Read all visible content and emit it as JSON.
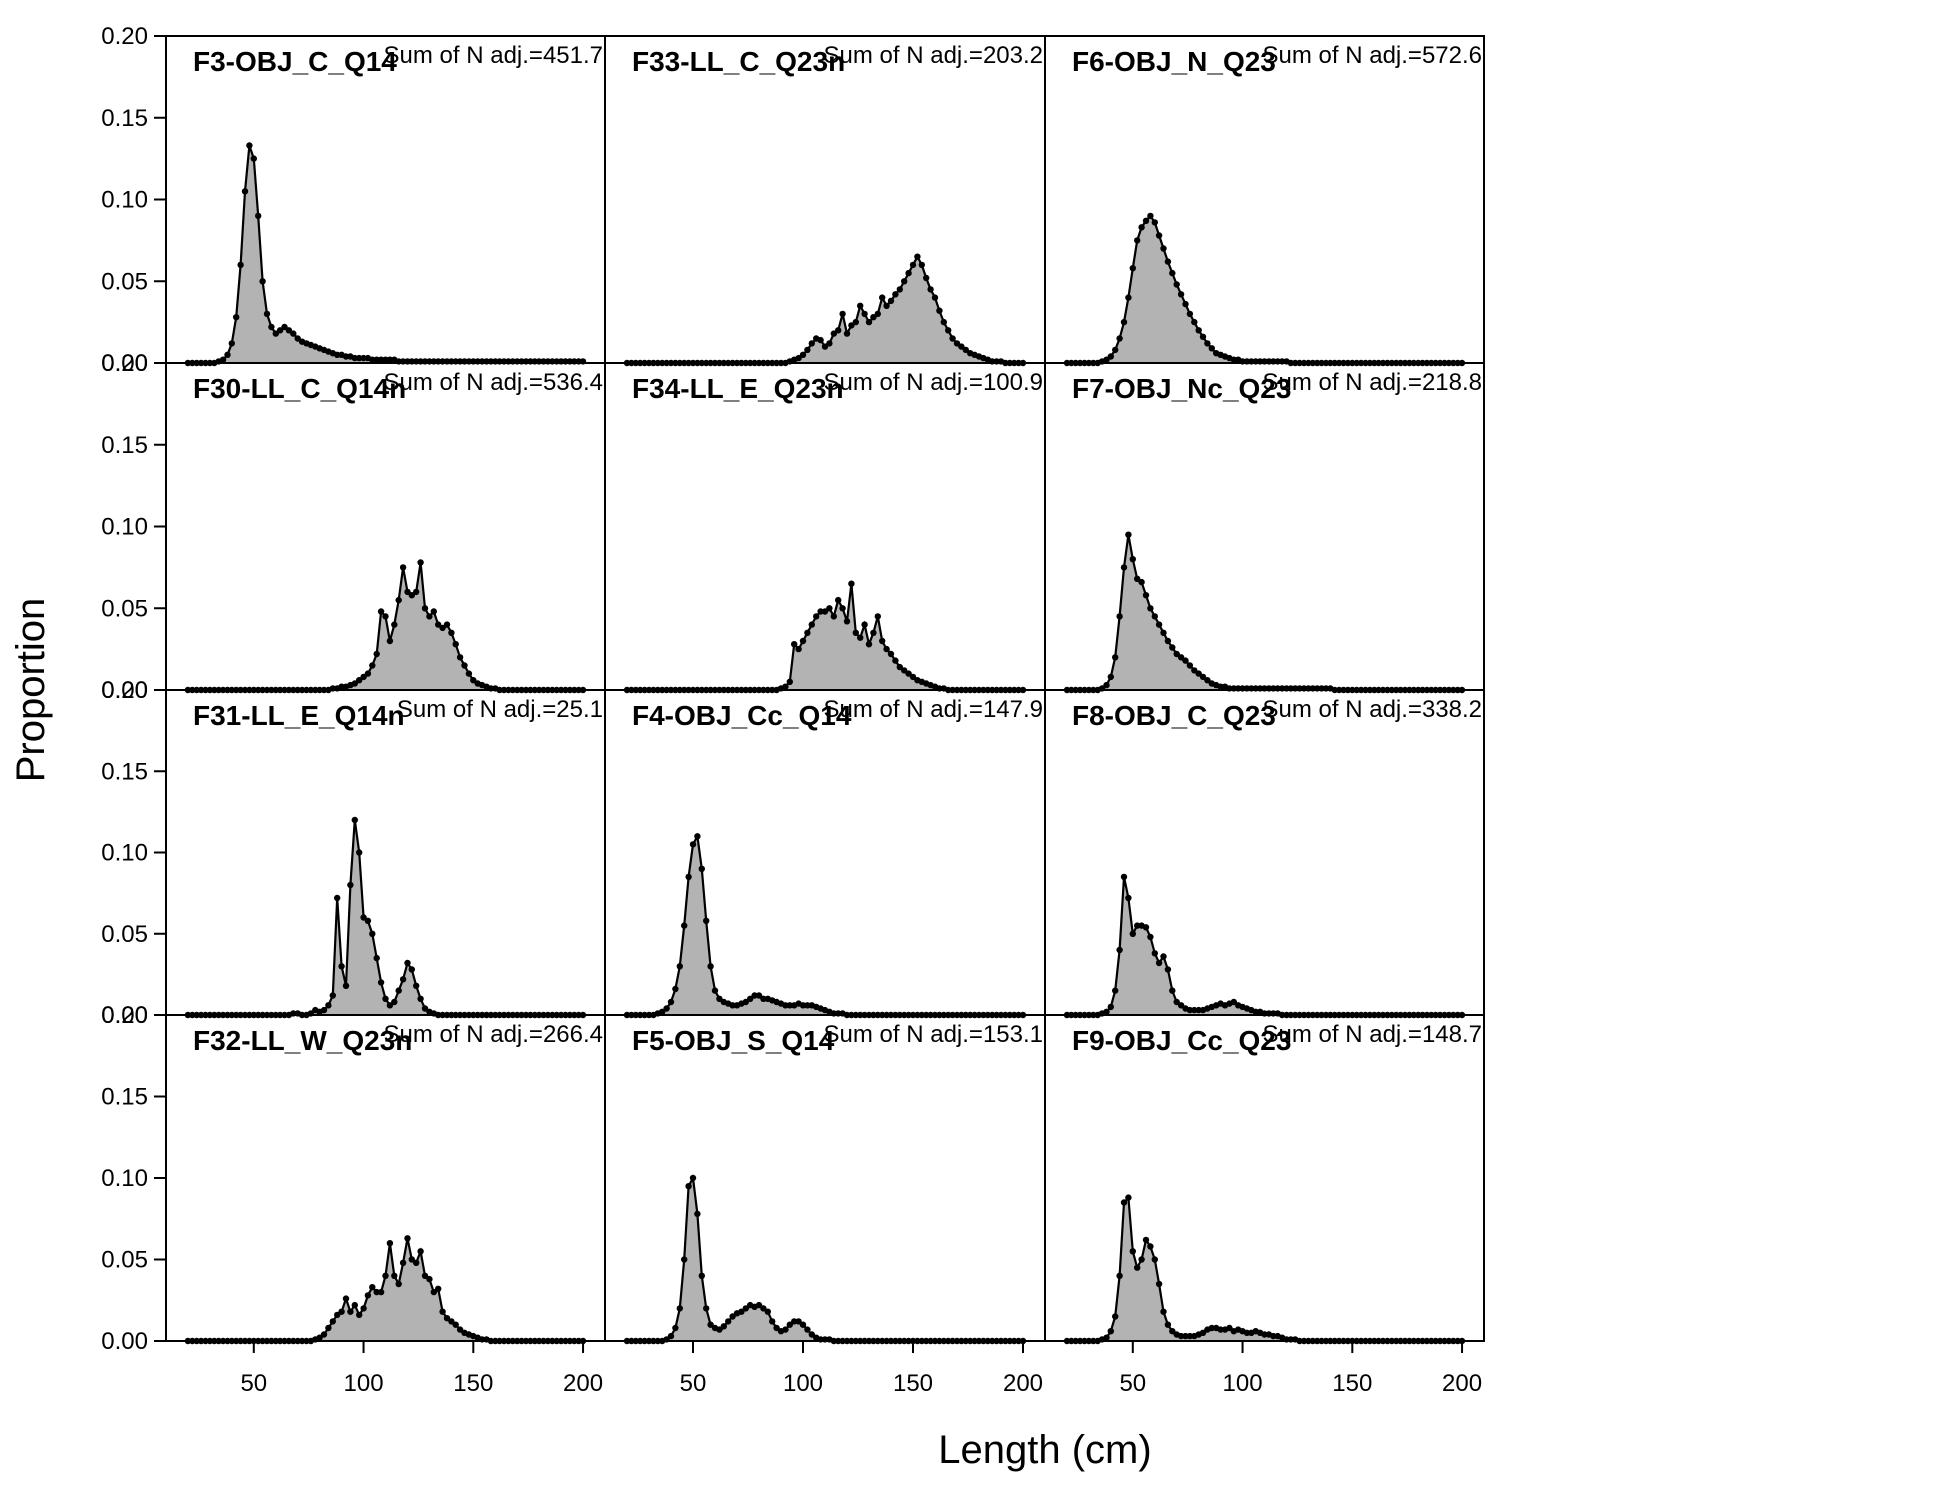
{
  "chart_data": {
    "type": "area",
    "xlabel": "Length (cm)",
    "ylabel": "Proportion",
    "xlim": [
      10,
      210
    ],
    "ylim": [
      0,
      0.2
    ],
    "x_ticks": [
      "50",
      "100",
      "150",
      "200"
    ],
    "y_ticks": [
      "0.00",
      "0.05",
      "0.10",
      "0.15",
      "0.20"
    ],
    "x_start": 20,
    "x_step": 2,
    "colors": {
      "fill": "#b3b3b3",
      "line": "#000000"
    },
    "panels": [
      {
        "title": "F3-OBJ_C_Q14",
        "sum_label": "Sum of N adj.=451.7",
        "values": [
          0,
          0,
          0,
          0,
          0,
          0,
          0,
          0.001,
          0.002,
          0.005,
          0.012,
          0.028,
          0.06,
          0.105,
          0.133,
          0.125,
          0.09,
          0.05,
          0.03,
          0.022,
          0.018,
          0.02,
          0.022,
          0.02,
          0.018,
          0.015,
          0.013,
          0.012,
          0.011,
          0.01,
          0.009,
          0.008,
          0.007,
          0.006,
          0.005,
          0.005,
          0.004,
          0.004,
          0.003,
          0.003,
          0.003,
          0.003,
          0.002,
          0.002,
          0.002,
          0.002,
          0.002,
          0.002,
          0.001,
          0.001,
          0.001,
          0.001,
          0.001,
          0.001,
          0.001,
          0.001,
          0.001,
          0.001,
          0.001,
          0.001,
          0.001,
          0.001,
          0.001,
          0.001,
          0.001,
          0.001,
          0.001,
          0.001,
          0.001,
          0.001,
          0.001,
          0.001,
          0.001,
          0.001,
          0.001,
          0.001,
          0.001,
          0.001,
          0.001,
          0.001,
          0.001,
          0.001,
          0.001,
          0.001,
          0.001,
          0.001,
          0.001,
          0.001,
          0.001,
          0.001,
          0.001
        ]
      },
      {
        "title": "F33-LL_C_Q23n",
        "sum_label": "Sum of N adj.=203.2",
        "values": [
          0,
          0,
          0,
          0,
          0,
          0,
          0,
          0,
          0,
          0,
          0,
          0,
          0,
          0,
          0,
          0,
          0,
          0,
          0,
          0,
          0,
          0,
          0,
          0,
          0,
          0,
          0,
          0,
          0,
          0,
          0,
          0,
          0,
          0,
          0,
          0,
          0,
          0.001,
          0.002,
          0.003,
          0.005,
          0.008,
          0.012,
          0.015,
          0.014,
          0.01,
          0.012,
          0.018,
          0.02,
          0.03,
          0.018,
          0.023,
          0.025,
          0.035,
          0.03,
          0.025,
          0.028,
          0.03,
          0.04,
          0.035,
          0.038,
          0.042,
          0.045,
          0.05,
          0.055,
          0.06,
          0.065,
          0.06,
          0.052,
          0.045,
          0.04,
          0.032,
          0.025,
          0.02,
          0.015,
          0.012,
          0.01,
          0.008,
          0.006,
          0.005,
          0.004,
          0.003,
          0.002,
          0.001,
          0.001,
          0.001,
          0,
          0,
          0,
          0,
          0
        ]
      },
      {
        "title": "F6-OBJ_N_Q23",
        "sum_label": "Sum of N adj.=572.6",
        "values": [
          0,
          0,
          0,
          0,
          0,
          0,
          0,
          0,
          0.001,
          0.002,
          0.004,
          0.008,
          0.015,
          0.025,
          0.04,
          0.058,
          0.075,
          0.083,
          0.087,
          0.09,
          0.086,
          0.078,
          0.07,
          0.062,
          0.055,
          0.048,
          0.042,
          0.036,
          0.03,
          0.025,
          0.02,
          0.016,
          0.012,
          0.009,
          0.006,
          0.005,
          0.004,
          0.003,
          0.002,
          0.002,
          0.001,
          0.001,
          0.001,
          0.001,
          0.001,
          0.001,
          0.001,
          0.001,
          0.001,
          0.001,
          0.001,
          0,
          0,
          0,
          0,
          0,
          0,
          0,
          0,
          0,
          0,
          0,
          0,
          0,
          0,
          0,
          0,
          0,
          0,
          0,
          0,
          0,
          0,
          0,
          0,
          0,
          0,
          0,
          0,
          0,
          0,
          0,
          0,
          0,
          0,
          0,
          0,
          0,
          0,
          0,
          0
        ]
      },
      {
        "title": "F30-LL_C_Q14n",
        "sum_label": "Sum of N adj.=536.4",
        "values": [
          0,
          0,
          0,
          0,
          0,
          0,
          0,
          0,
          0,
          0,
          0,
          0,
          0,
          0,
          0,
          0,
          0,
          0,
          0,
          0,
          0,
          0,
          0,
          0,
          0,
          0,
          0,
          0,
          0,
          0,
          0,
          0,
          0,
          0.001,
          0.001,
          0.002,
          0.002,
          0.003,
          0.004,
          0.006,
          0.008,
          0.01,
          0.015,
          0.022,
          0.048,
          0.045,
          0.03,
          0.04,
          0.055,
          0.075,
          0.06,
          0.058,
          0.06,
          0.078,
          0.05,
          0.045,
          0.048,
          0.04,
          0.038,
          0.04,
          0.035,
          0.028,
          0.02,
          0.015,
          0.01,
          0.006,
          0.004,
          0.003,
          0.002,
          0.001,
          0.001,
          0,
          0,
          0,
          0,
          0,
          0,
          0,
          0,
          0,
          0,
          0,
          0,
          0,
          0,
          0,
          0,
          0,
          0,
          0,
          0
        ]
      },
      {
        "title": "F34-LL_E_Q23n",
        "sum_label": "Sum of N adj.=100.9",
        "values": [
          0,
          0,
          0,
          0,
          0,
          0,
          0,
          0,
          0,
          0,
          0,
          0,
          0,
          0,
          0,
          0,
          0,
          0,
          0,
          0,
          0,
          0,
          0,
          0,
          0,
          0,
          0,
          0,
          0,
          0,
          0,
          0,
          0,
          0,
          0,
          0.001,
          0.002,
          0.005,
          0.028,
          0.025,
          0.03,
          0.035,
          0.04,
          0.045,
          0.048,
          0.048,
          0.05,
          0.045,
          0.055,
          0.05,
          0.042,
          0.065,
          0.035,
          0.032,
          0.04,
          0.028,
          0.035,
          0.045,
          0.03,
          0.025,
          0.022,
          0.018,
          0.014,
          0.012,
          0.01,
          0.008,
          0.006,
          0.005,
          0.004,
          0.003,
          0.002,
          0.001,
          0.001,
          0,
          0,
          0,
          0,
          0,
          0,
          0,
          0,
          0,
          0,
          0,
          0,
          0,
          0,
          0,
          0,
          0,
          0
        ]
      },
      {
        "title": "F7-OBJ_Nc_Q23",
        "sum_label": "Sum of N adj.=218.8",
        "values": [
          0,
          0,
          0,
          0,
          0,
          0,
          0,
          0,
          0.001,
          0.003,
          0.008,
          0.02,
          0.045,
          0.075,
          0.095,
          0.08,
          0.068,
          0.066,
          0.058,
          0.05,
          0.045,
          0.04,
          0.035,
          0.03,
          0.026,
          0.022,
          0.02,
          0.018,
          0.015,
          0.012,
          0.01,
          0.008,
          0.006,
          0.004,
          0.003,
          0.002,
          0.002,
          0.001,
          0.001,
          0.001,
          0.001,
          0.001,
          0.001,
          0.001,
          0.001,
          0.001,
          0.001,
          0.001,
          0.001,
          0.001,
          0.001,
          0.001,
          0.001,
          0.001,
          0.001,
          0.001,
          0.001,
          0.001,
          0.001,
          0.001,
          0.001,
          0,
          0,
          0,
          0,
          0,
          0,
          0,
          0,
          0,
          0,
          0,
          0,
          0,
          0,
          0,
          0,
          0,
          0,
          0,
          0,
          0,
          0,
          0,
          0,
          0,
          0,
          0,
          0,
          0,
          0
        ]
      },
      {
        "title": "F31-LL_E_Q14n",
        "sum_label": "Sum of N adj.=25.1",
        "values": [
          0,
          0,
          0,
          0,
          0,
          0,
          0,
          0,
          0,
          0,
          0,
          0,
          0,
          0,
          0,
          0,
          0,
          0,
          0,
          0,
          0,
          0,
          0,
          0,
          0.001,
          0.001,
          0,
          0,
          0.001,
          0.003,
          0.002,
          0.003,
          0.006,
          0.012,
          0.072,
          0.03,
          0.018,
          0.08,
          0.12,
          0.1,
          0.06,
          0.058,
          0.05,
          0.035,
          0.02,
          0.01,
          0.006,
          0.008,
          0.015,
          0.022,
          0.032,
          0.028,
          0.018,
          0.01,
          0.004,
          0.002,
          0.001,
          0,
          0,
          0,
          0,
          0,
          0,
          0,
          0,
          0,
          0,
          0,
          0,
          0,
          0,
          0,
          0,
          0,
          0,
          0,
          0,
          0,
          0,
          0,
          0,
          0,
          0,
          0,
          0,
          0,
          0,
          0,
          0,
          0,
          0
        ]
      },
      {
        "title": "F4-OBJ_Cc_Q14",
        "sum_label": "Sum of N adj.=147.9",
        "values": [
          0,
          0,
          0,
          0,
          0,
          0,
          0,
          0.001,
          0.002,
          0.004,
          0.008,
          0.016,
          0.03,
          0.055,
          0.085,
          0.105,
          0.11,
          0.09,
          0.058,
          0.03,
          0.015,
          0.01,
          0.008,
          0.007,
          0.006,
          0.006,
          0.007,
          0.008,
          0.01,
          0.012,
          0.012,
          0.01,
          0.01,
          0.009,
          0.008,
          0.007,
          0.006,
          0.006,
          0.006,
          0.007,
          0.006,
          0.006,
          0.006,
          0.005,
          0.004,
          0.003,
          0.002,
          0.001,
          0.001,
          0.001,
          0,
          0,
          0,
          0,
          0,
          0,
          0,
          0,
          0,
          0,
          0,
          0,
          0,
          0,
          0,
          0,
          0,
          0,
          0,
          0,
          0,
          0,
          0,
          0,
          0,
          0,
          0,
          0,
          0,
          0,
          0,
          0,
          0,
          0,
          0,
          0,
          0,
          0,
          0,
          0,
          0
        ]
      },
      {
        "title": "F8-OBJ_C_Q23",
        "sum_label": "Sum of N adj.=338.2",
        "values": [
          0,
          0,
          0,
          0,
          0,
          0,
          0,
          0,
          0.001,
          0.002,
          0.005,
          0.015,
          0.04,
          0.085,
          0.072,
          0.05,
          0.055,
          0.055,
          0.054,
          0.048,
          0.038,
          0.032,
          0.036,
          0.028,
          0.015,
          0.008,
          0.006,
          0.004,
          0.003,
          0.003,
          0.003,
          0.003,
          0.004,
          0.005,
          0.006,
          0.007,
          0.006,
          0.007,
          0.008,
          0.006,
          0.005,
          0.004,
          0.003,
          0.002,
          0.002,
          0.001,
          0.001,
          0.001,
          0.001,
          0,
          0,
          0,
          0,
          0,
          0,
          0,
          0,
          0,
          0,
          0,
          0,
          0,
          0,
          0,
          0,
          0,
          0,
          0,
          0,
          0,
          0,
          0,
          0,
          0,
          0,
          0,
          0,
          0,
          0,
          0,
          0,
          0,
          0,
          0,
          0,
          0,
          0,
          0,
          0,
          0,
          0
        ]
      },
      {
        "title": "F32-LL_W_Q23n",
        "sum_label": "Sum of N adj.=266.4",
        "values": [
          0,
          0,
          0,
          0,
          0,
          0,
          0,
          0,
          0,
          0,
          0,
          0,
          0,
          0,
          0,
          0,
          0,
          0,
          0,
          0,
          0,
          0,
          0,
          0,
          0,
          0,
          0,
          0,
          0,
          0.001,
          0.002,
          0.004,
          0.008,
          0.012,
          0.016,
          0.018,
          0.026,
          0.018,
          0.022,
          0.016,
          0.02,
          0.028,
          0.033,
          0.03,
          0.03,
          0.04,
          0.06,
          0.04,
          0.035,
          0.048,
          0.063,
          0.05,
          0.048,
          0.055,
          0.04,
          0.038,
          0.03,
          0.032,
          0.018,
          0.014,
          0.012,
          0.01,
          0.007,
          0.005,
          0.004,
          0.003,
          0.002,
          0.001,
          0.001,
          0,
          0,
          0,
          0,
          0,
          0,
          0,
          0,
          0,
          0,
          0,
          0,
          0,
          0,
          0,
          0,
          0,
          0,
          0,
          0,
          0,
          0
        ]
      },
      {
        "title": "F5-OBJ_S_Q14",
        "sum_label": "Sum of N adj.=153.1",
        "values": [
          0,
          0,
          0,
          0,
          0,
          0,
          0,
          0,
          0,
          0.001,
          0.003,
          0.008,
          0.02,
          0.05,
          0.095,
          0.1,
          0.078,
          0.04,
          0.02,
          0.01,
          0.008,
          0.007,
          0.009,
          0.012,
          0.015,
          0.017,
          0.018,
          0.02,
          0.022,
          0.021,
          0.022,
          0.02,
          0.018,
          0.012,
          0.008,
          0.006,
          0.007,
          0.01,
          0.012,
          0.012,
          0.01,
          0.007,
          0.004,
          0.002,
          0.001,
          0.001,
          0.001,
          0,
          0,
          0,
          0,
          0,
          0,
          0,
          0,
          0,
          0,
          0,
          0,
          0,
          0,
          0,
          0,
          0,
          0,
          0,
          0,
          0,
          0,
          0,
          0,
          0,
          0,
          0,
          0,
          0,
          0,
          0,
          0,
          0,
          0,
          0,
          0,
          0,
          0,
          0,
          0,
          0,
          0,
          0,
          0
        ]
      },
      {
        "title": "F9-OBJ_Cc_Q23",
        "sum_label": "Sum of N adj.=148.7",
        "values": [
          0,
          0,
          0,
          0,
          0,
          0,
          0,
          0,
          0.001,
          0.002,
          0.006,
          0.015,
          0.04,
          0.085,
          0.088,
          0.055,
          0.045,
          0.05,
          0.062,
          0.058,
          0.05,
          0.035,
          0.018,
          0.01,
          0.006,
          0.004,
          0.003,
          0.003,
          0.003,
          0.003,
          0.004,
          0.005,
          0.007,
          0.008,
          0.008,
          0.007,
          0.007,
          0.008,
          0.006,
          0.007,
          0.006,
          0.005,
          0.005,
          0.006,
          0.005,
          0.004,
          0.004,
          0.003,
          0.003,
          0.002,
          0.001,
          0.001,
          0.001,
          0,
          0,
          0,
          0,
          0,
          0,
          0,
          0,
          0,
          0,
          0,
          0,
          0,
          0,
          0,
          0,
          0,
          0,
          0,
          0,
          0,
          0,
          0,
          0,
          0,
          0,
          0,
          0,
          0,
          0,
          0,
          0,
          0,
          0,
          0,
          0,
          0,
          0
        ]
      }
    ]
  }
}
